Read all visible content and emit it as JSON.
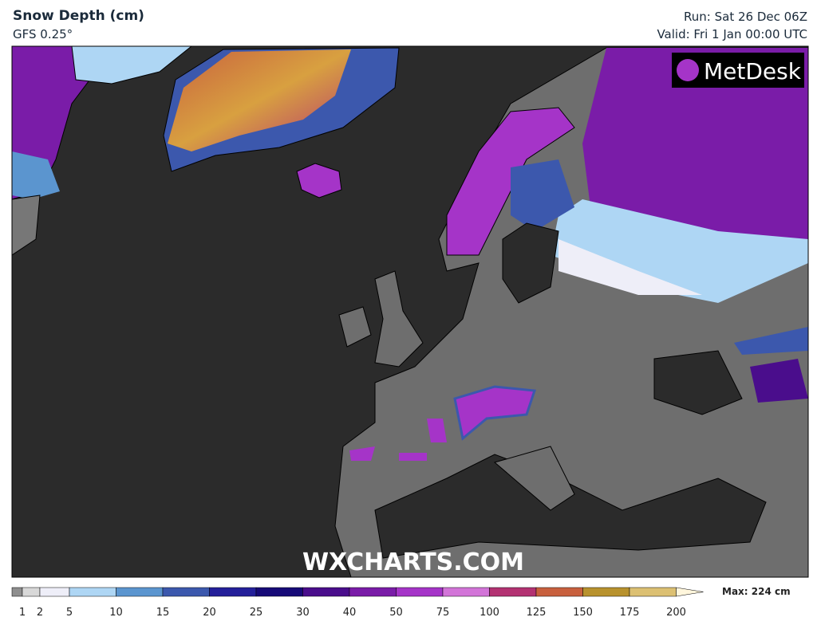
{
  "header": {
    "title": "Snow Depth (cm)",
    "model": "GFS 0.25°",
    "run": "Run: Sat 26 Dec 06Z",
    "valid": "Valid: Fri 1 Jan 00:00 UTC"
  },
  "logo": "MetDesk",
  "watermark": "WXCHARTS.COM",
  "legend": {
    "levels": [
      1,
      2,
      5,
      10,
      15,
      20,
      25,
      30,
      40,
      50,
      75,
      100,
      125,
      150,
      175,
      200
    ],
    "colors": [
      "#8e8e8e",
      "#d8d8d8",
      "#eeeef8",
      "#aed6f4",
      "#5b95cf",
      "#3c58ad",
      "#24209a",
      "#170a78",
      "#4a0d8c",
      "#7a1ca8",
      "#a534c8",
      "#d274d8",
      "#b33272",
      "#c8603e",
      "#b8922e",
      "#dcc072",
      "#fff6dc"
    ],
    "max_label": "Max: 224 cm"
  }
}
